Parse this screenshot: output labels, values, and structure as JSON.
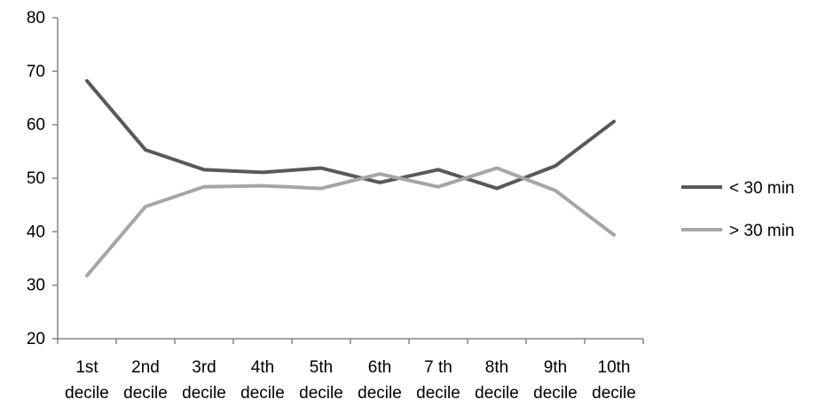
{
  "chart_data": {
    "type": "line",
    "title": "",
    "xlabel": "",
    "ylabel": "",
    "categories": [
      [
        "1st",
        "decile"
      ],
      [
        "2nd",
        "decile"
      ],
      [
        "3rd",
        "decile"
      ],
      [
        "4th",
        "decile"
      ],
      [
        "5th",
        "decile"
      ],
      [
        "6th",
        "decile"
      ],
      [
        "7 th",
        "decile"
      ],
      [
        "8th",
        "decile"
      ],
      [
        "9th",
        "decile"
      ],
      [
        "10th",
        "decile"
      ]
    ],
    "yticks": [
      "20",
      "30",
      "40",
      "50",
      "60",
      "70",
      "80"
    ],
    "ylim": [
      20,
      80
    ],
    "grid": false,
    "legend_position": "right",
    "series": [
      {
        "name": "< 30 min",
        "color": "#595959",
        "values": [
          68.2,
          55.3,
          51.6,
          51.1,
          51.9,
          49.2,
          51.6,
          48.1,
          52.3,
          60.6
        ]
      },
      {
        "name": "> 30 min",
        "color": "#A6A6A6",
        "values": [
          31.8,
          44.7,
          48.4,
          48.6,
          48.1,
          50.8,
          48.4,
          51.9,
          47.7,
          39.4
        ]
      }
    ]
  }
}
